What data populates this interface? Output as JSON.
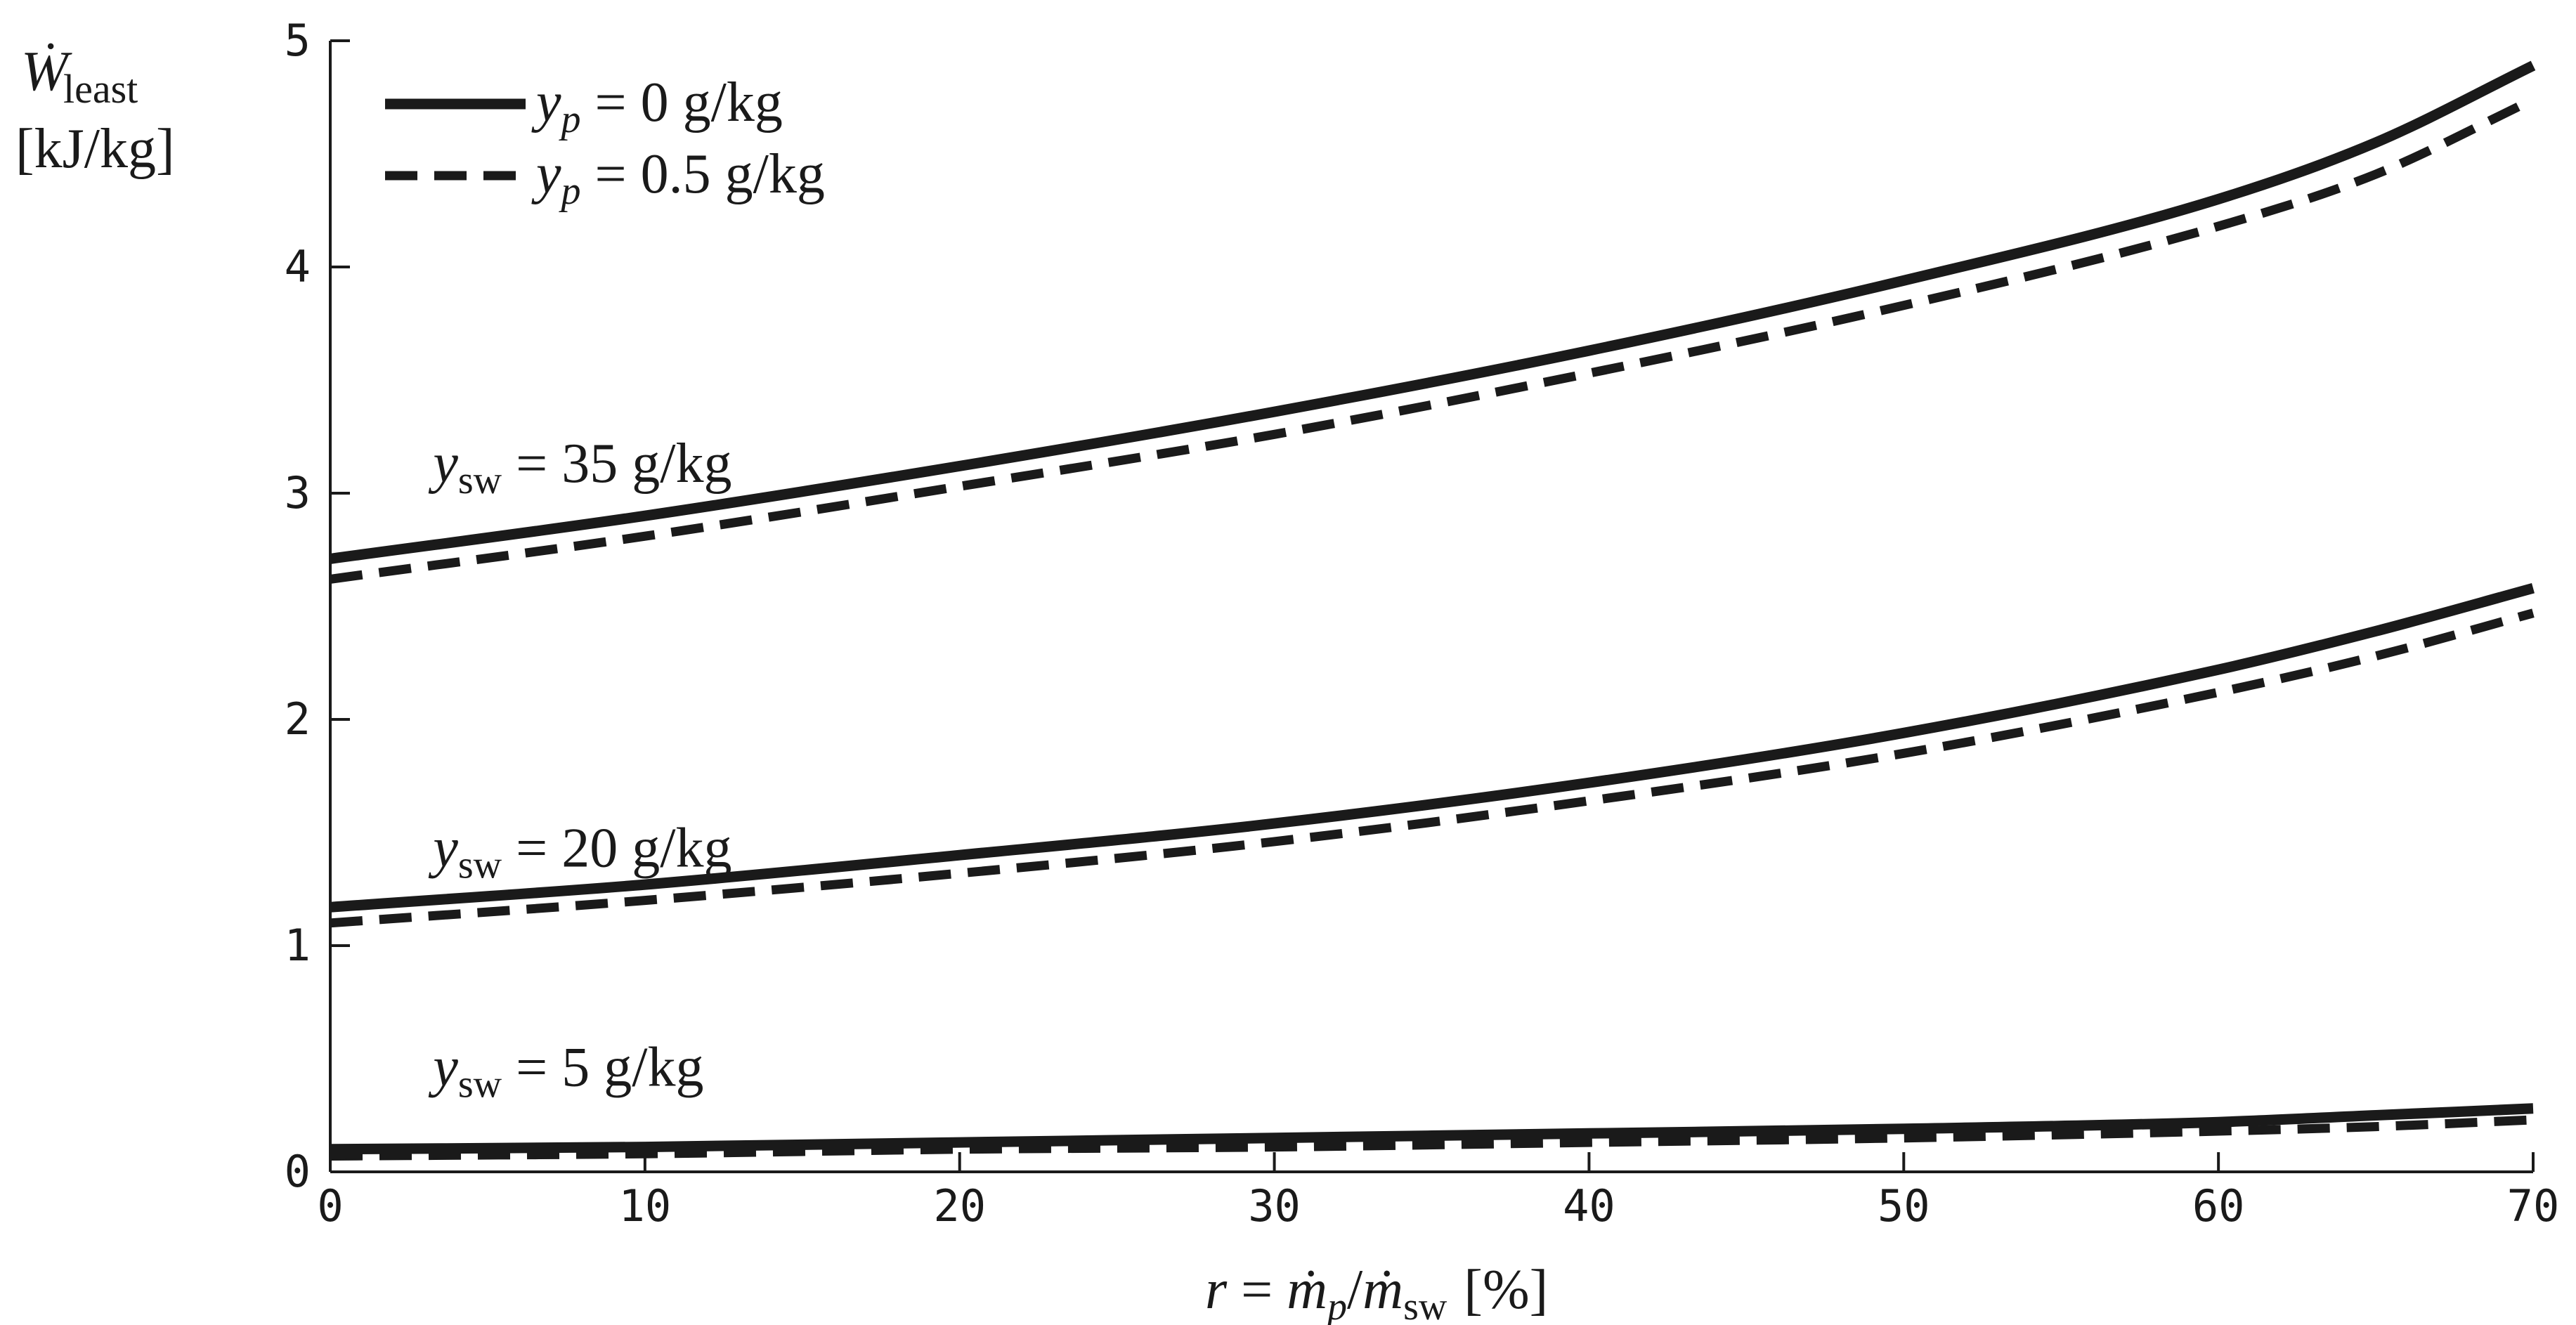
{
  "chart_data": {
    "type": "line",
    "x_axis": {
      "label_parts": {
        "var": "r",
        "eq": " = ",
        "num": "ṁ",
        "num_sub": "p",
        "slash": "/",
        "den": "ṁ",
        "den_sub": "sw",
        "unit": "[%]"
      },
      "range": [
        0,
        70
      ],
      "ticks": [
        0,
        10,
        20,
        30,
        40,
        50,
        60,
        70
      ]
    },
    "y_axis": {
      "label_parts": {
        "symbol": "Ẇ",
        "sub": "least",
        "unit": "[kJ/kg]"
      },
      "range": [
        0,
        5
      ],
      "ticks": [
        0,
        1,
        2,
        3,
        4,
        5
      ]
    },
    "legend": {
      "placement": "top-left",
      "entries": [
        {
          "var": "y",
          "sub": "p",
          "rest": " = 0 g/kg",
          "style": "solid"
        },
        {
          "var": "y",
          "sub": "p",
          "rest": " = 0.5 g/kg",
          "style": "dashed"
        }
      ]
    },
    "annotations": [
      {
        "var": "y",
        "sub": "sw",
        "rest": " = 35 g/kg",
        "near_x": 3,
        "near_y": 3.05
      },
      {
        "var": "y",
        "sub": "sw",
        "rest": " = 20 g/kg",
        "near_x": 3,
        "near_y": 1.35
      },
      {
        "var": "y",
        "sub": "sw",
        "rest": " = 5 g/kg",
        "near_x": 3,
        "near_y": 0.38
      }
    ],
    "grid": false,
    "x": [
      0,
      10,
      20,
      30,
      40,
      50,
      60,
      65,
      70
    ],
    "series": [
      {
        "group": "y_sw = 35 g/kg",
        "y_p": "0 g/kg",
        "style": "solid",
        "values": [
          2.71,
          2.9,
          3.12,
          3.36,
          3.63,
          3.94,
          4.3,
          4.55,
          4.89
        ]
      },
      {
        "group": "y_sw = 35 g/kg",
        "y_p": "0.5 g/kg",
        "style": "dashed",
        "values": [
          2.62,
          2.81,
          3.03,
          3.26,
          3.53,
          3.83,
          4.18,
          4.41,
          4.74
        ]
      },
      {
        "group": "y_sw = 20 g/kg",
        "y_p": "0 g/kg",
        "style": "solid",
        "values": [
          1.17,
          1.27,
          1.4,
          1.54,
          1.72,
          1.94,
          2.22,
          2.39,
          2.58
        ]
      },
      {
        "group": "y_sw = 20 g/kg",
        "y_p": "0.5 g/kg",
        "style": "dashed",
        "values": [
          1.1,
          1.2,
          1.32,
          1.46,
          1.64,
          1.85,
          2.12,
          2.28,
          2.47
        ]
      },
      {
        "group": "y_sw = 5 g/kg",
        "y_p": "0 g/kg",
        "style": "solid",
        "values": [
          0.1,
          0.11,
          0.13,
          0.15,
          0.17,
          0.19,
          0.22,
          0.25,
          0.28
        ]
      },
      {
        "group": "y_sw = 5 g/kg",
        "y_p": "0.5 g/kg",
        "style": "dashed",
        "values": [
          0.07,
          0.08,
          0.1,
          0.11,
          0.13,
          0.15,
          0.18,
          0.2,
          0.23
        ]
      }
    ]
  }
}
